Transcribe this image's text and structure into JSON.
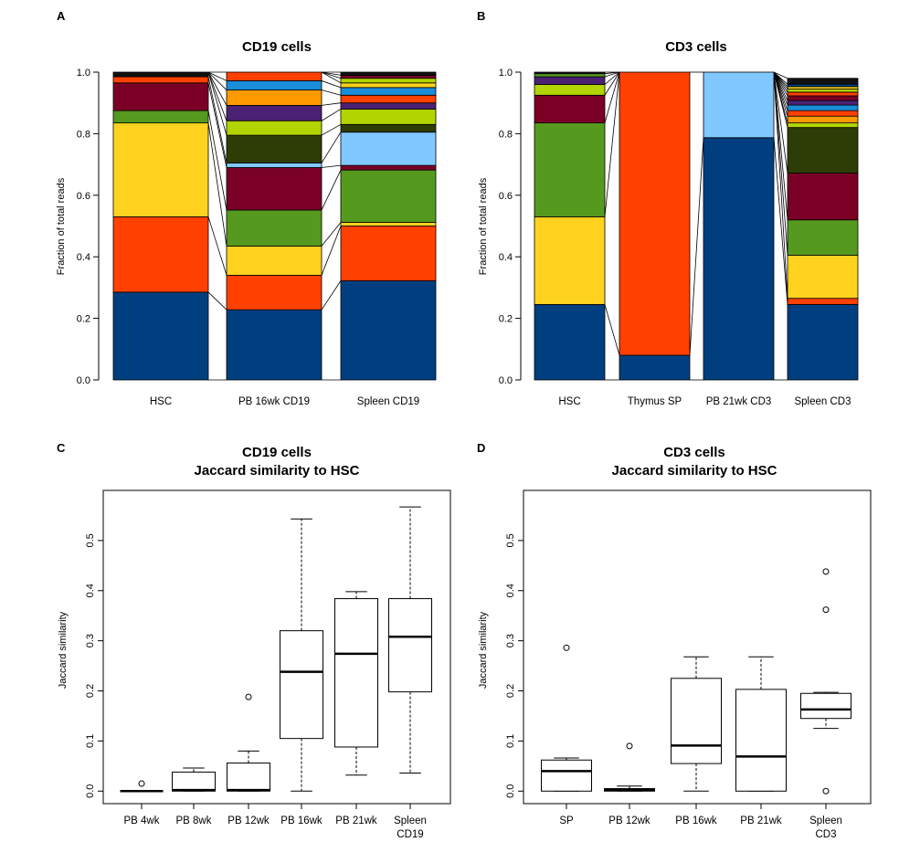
{
  "colors": {
    "blue": "#003f7f",
    "red": "#ff4000",
    "yellow": "#ffd21f",
    "green": "#559a1e",
    "maroon": "#7a0026",
    "purple": "#4b2174",
    "lime": "#b2d400",
    "orange": "#ff9900",
    "skyblue": "#1a8ed8",
    "lightblue": "#80c8ff",
    "darkolive": "#2e3d06",
    "black": "#111111"
  },
  "panels": {
    "A": {
      "letter": "A",
      "title": "CD19 cells"
    },
    "B": {
      "letter": "B",
      "title": "CD3 cells"
    },
    "C": {
      "letter": "C",
      "title1": "CD19 cells",
      "title2": "Jaccard similarity to HSC"
    },
    "D": {
      "letter": "D",
      "title1": "CD3 cells",
      "title2": "Jaccard similarity to HSC"
    }
  },
  "chart_data": [
    {
      "id": "A",
      "type": "bar",
      "stacked": true,
      "title": "CD19 cells",
      "ylabel": "Fraction of total reads",
      "ylim": [
        0,
        1
      ],
      "yticks": [
        "0.0",
        "0.2",
        "0.4",
        "0.6",
        "0.8",
        "1.0"
      ],
      "categories": [
        "HSC",
        "PB 16wk CD19",
        "Spleen CD19"
      ],
      "stacks": [
        [
          {
            "c": "blue",
            "v": 0.285
          },
          {
            "c": "red",
            "v": 0.245
          },
          {
            "c": "yellow",
            "v": 0.305
          },
          {
            "c": "green",
            "v": 0.04
          },
          {
            "c": "maroon",
            "v": 0.09
          },
          {
            "c": "red",
            "v": 0.02
          },
          {
            "c": "black",
            "v": 0.015
          }
        ],
        [
          {
            "c": "blue",
            "v": 0.228
          },
          {
            "c": "red",
            "v": 0.112
          },
          {
            "c": "yellow",
            "v": 0.095
          },
          {
            "c": "green",
            "v": 0.117
          },
          {
            "c": "maroon",
            "v": 0.138
          },
          {
            "c": "lightblue",
            "v": 0.015
          },
          {
            "c": "darkolive",
            "v": 0.09
          },
          {
            "c": "lime",
            "v": 0.047
          },
          {
            "c": "purple",
            "v": 0.05
          },
          {
            "c": "orange",
            "v": 0.05
          },
          {
            "c": "skyblue",
            "v": 0.03
          },
          {
            "c": "red",
            "v": 0.028
          }
        ],
        [
          {
            "c": "blue",
            "v": 0.322
          },
          {
            "c": "red",
            "v": 0.178
          },
          {
            "c": "yellow",
            "v": 0.012
          },
          {
            "c": "green",
            "v": 0.17
          },
          {
            "c": "maroon",
            "v": 0.015
          },
          {
            "c": "lightblue",
            "v": 0.108
          },
          {
            "c": "darkolive",
            "v": 0.025
          },
          {
            "c": "lime",
            "v": 0.05
          },
          {
            "c": "purple",
            "v": 0.02
          },
          {
            "c": "red",
            "v": 0.025
          },
          {
            "c": "skyblue",
            "v": 0.025
          },
          {
            "c": "yellow",
            "v": 0.015
          },
          {
            "c": "lime",
            "v": 0.015
          },
          {
            "c": "maroon",
            "v": 0.01
          },
          {
            "c": "black",
            "v": 0.01
          }
        ]
      ]
    },
    {
      "id": "B",
      "type": "bar",
      "stacked": true,
      "title": "CD3 cells",
      "ylabel": "Fraction of total reads",
      "ylim": [
        0,
        1
      ],
      "yticks": [
        "0.0",
        "0.2",
        "0.4",
        "0.6",
        "0.8",
        "1.0"
      ],
      "categories": [
        "HSC",
        "Thymus SP",
        "PB 21wk CD3",
        "Spleen CD3"
      ],
      "stacks": [
        [
          {
            "c": "blue",
            "v": 0.245
          },
          {
            "c": "yellow",
            "v": 0.285
          },
          {
            "c": "green",
            "v": 0.305
          },
          {
            "c": "maroon",
            "v": 0.09
          },
          {
            "c": "lime",
            "v": 0.035
          },
          {
            "c": "purple",
            "v": 0.025
          },
          {
            "c": "green",
            "v": 0.01
          },
          {
            "c": "black",
            "v": 0.005
          }
        ],
        [
          {
            "c": "blue",
            "v": 0.08
          },
          {
            "c": "red",
            "v": 0.92
          }
        ],
        [
          {
            "c": "blue",
            "v": 0.787
          },
          {
            "c": "lightblue",
            "v": 0.213
          }
        ],
        [
          {
            "c": "blue",
            "v": 0.245
          },
          {
            "c": "red",
            "v": 0.02
          },
          {
            "c": "yellow",
            "v": 0.14
          },
          {
            "c": "green",
            "v": 0.115
          },
          {
            "c": "maroon",
            "v": 0.152
          },
          {
            "c": "darkolive",
            "v": 0.148
          },
          {
            "c": "lime",
            "v": 0.015
          },
          {
            "c": "orange",
            "v": 0.022
          },
          {
            "c": "red",
            "v": 0.018
          },
          {
            "c": "skyblue",
            "v": 0.018
          },
          {
            "c": "purple",
            "v": 0.015
          },
          {
            "c": "maroon",
            "v": 0.015
          },
          {
            "c": "red",
            "v": 0.012
          },
          {
            "c": "lime",
            "v": 0.01
          },
          {
            "c": "yellow",
            "v": 0.008
          },
          {
            "c": "blue",
            "v": 0.008
          },
          {
            "c": "black",
            "v": 0.019
          }
        ]
      ]
    },
    {
      "id": "C",
      "type": "boxplot",
      "title": "CD19 cells\nJaccard similarity to HSC",
      "ylabel": "Jaccard similarity",
      "ylim": [
        -0.025,
        0.6
      ],
      "yticks": [
        "0.0",
        "0.1",
        "0.2",
        "0.3",
        "0.4",
        "0.5"
      ],
      "categories": [
        [
          "PB 4wk"
        ],
        [
          "PB 8wk"
        ],
        [
          "PB 12wk"
        ],
        [
          "PB 16wk"
        ],
        [
          "PB 21wk"
        ],
        [
          "Spleen",
          "CD19"
        ]
      ],
      "boxes": [
        {
          "min": 0.0,
          "q1": 0.0,
          "median": 0.0,
          "q3": 0.0,
          "max": 0.0,
          "outliers": [
            0.015
          ]
        },
        {
          "min": 0.0,
          "q1": 0.0,
          "median": 0.002,
          "q3": 0.038,
          "max": 0.046,
          "outliers": []
        },
        {
          "min": 0.0,
          "q1": 0.0,
          "median": 0.002,
          "q3": 0.056,
          "max": 0.08,
          "outliers": [
            0.188
          ]
        },
        {
          "min": 0.0,
          "q1": 0.105,
          "median": 0.238,
          "q3": 0.32,
          "max": 0.543,
          "outliers": []
        },
        {
          "min": 0.032,
          "q1": 0.088,
          "median": 0.274,
          "q3": 0.384,
          "max": 0.398,
          "outliers": []
        },
        {
          "min": 0.036,
          "q1": 0.198,
          "median": 0.308,
          "q3": 0.384,
          "max": 0.567,
          "outliers": []
        }
      ]
    },
    {
      "id": "D",
      "type": "boxplot",
      "title": "CD3 cells\nJaccard similarity to HSC",
      "ylabel": "Jaccard similarity",
      "ylim": [
        -0.025,
        0.6
      ],
      "yticks": [
        "0.0",
        "0.1",
        "0.2",
        "0.3",
        "0.4",
        "0.5"
      ],
      "categories": [
        [
          "SP"
        ],
        [
          "PB 12wk"
        ],
        [
          "PB 16wk"
        ],
        [
          "PB 21wk"
        ],
        [
          "Spleen",
          "CD3"
        ]
      ],
      "boxes": [
        {
          "min": 0.0,
          "q1": 0.0,
          "median": 0.04,
          "q3": 0.062,
          "max": 0.066,
          "outliers": [
            0.286
          ]
        },
        {
          "min": 0.0,
          "q1": 0.0,
          "median": 0.002,
          "q3": 0.005,
          "max": 0.01,
          "outliers": [
            0.09
          ]
        },
        {
          "min": 0.0,
          "q1": 0.055,
          "median": 0.091,
          "q3": 0.225,
          "max": 0.268,
          "outliers": []
        },
        {
          "min": 0.0,
          "q1": 0.0,
          "median": 0.069,
          "q3": 0.203,
          "max": 0.268,
          "outliers": []
        },
        {
          "min": 0.125,
          "q1": 0.145,
          "median": 0.163,
          "q3": 0.195,
          "max": 0.197,
          "outliers": [
            0.0,
            0.362,
            0.438
          ]
        }
      ]
    }
  ]
}
